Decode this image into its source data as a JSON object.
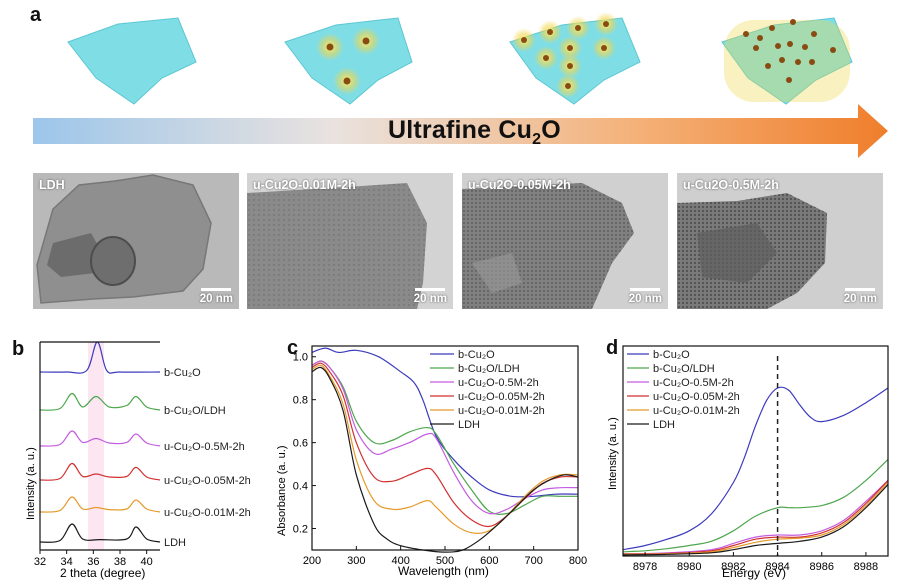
{
  "panel_labels": {
    "a": "a",
    "b": "b",
    "c": "c",
    "d": "d"
  },
  "arrow": {
    "label": "Ultrafine Cu2O",
    "base": "Ultrafine Cu",
    "sub": "2",
    "tail": "O"
  },
  "tem_images": [
    {
      "label": "LDH",
      "scale": "20 nm"
    },
    {
      "label": "u-Cu2O-0.01M-2h",
      "scale": "20 nm"
    },
    {
      "label": "u-Cu2O-0.05M-2h",
      "scale": "20 nm"
    },
    {
      "label": "u-Cu2O-0.5M-2h",
      "scale": "20 nm"
    }
  ],
  "colors": {
    "b_cu2o": "#3b3bbd",
    "b_cu2o_ldh": "#4ea64e",
    "u_05": "#c45ce0",
    "u_005": "#d23030",
    "u_001": "#e59a2a",
    "ldh": "#1a1a1a",
    "sheet": "#7fdde6"
  },
  "chart_data": [
    {
      "type": "line",
      "title": "",
      "xlabel": "2 theta (degree)",
      "ylabel": "Intensity (a. u.)",
      "xlim": [
        32,
        41
      ],
      "xticks": [
        32,
        34,
        36,
        38,
        40
      ],
      "highlight_range": [
        35.6,
        36.8
      ],
      "series": [
        {
          "name": "b-Cu2O",
          "label": "b-Cu₂O",
          "color": "#3b3bbd",
          "x": [
            32,
            34,
            35.5,
            36.3,
            37,
            38,
            41
          ],
          "y": [
            0,
            0,
            0.05,
            1.0,
            0.05,
            0,
            0
          ]
        },
        {
          "name": "b-Cu2O/LDH",
          "label": "b-Cu₂O/LDH",
          "color": "#4ea64e",
          "x": [
            32,
            33.5,
            34.4,
            35.2,
            36.2,
            37.2,
            38.5,
            39.2,
            40,
            41
          ],
          "y": [
            0,
            0.05,
            0.55,
            0.1,
            0.45,
            0.1,
            0.15,
            0.45,
            0.1,
            0
          ]
        },
        {
          "name": "u-Cu2O-0.5M-2h",
          "label": "u-Cu₂O-0.5M-2h",
          "color": "#c45ce0",
          "x": [
            32,
            33.5,
            34.4,
            35.2,
            36.2,
            37.2,
            38.5,
            39.2,
            40,
            41
          ],
          "y": [
            0,
            0.05,
            0.5,
            0.12,
            0.25,
            0.1,
            0.12,
            0.4,
            0.1,
            0
          ]
        },
        {
          "name": "u-Cu2O-0.05M-2h",
          "label": "u-Cu₂O-0.05M-2h",
          "color": "#d23030",
          "x": [
            32,
            33.5,
            34.4,
            35.2,
            36.2,
            37.2,
            38.5,
            39.2,
            40,
            41
          ],
          "y": [
            0,
            0.05,
            0.55,
            0.12,
            0.2,
            0.1,
            0.12,
            0.42,
            0.1,
            0
          ]
        },
        {
          "name": "u-Cu2O-0.01M-2h",
          "label": "u-Cu₂O-0.01M-2h",
          "color": "#e59a2a",
          "x": [
            32,
            33.5,
            34.4,
            35.2,
            36.2,
            37.2,
            38.5,
            39.2,
            40,
            41
          ],
          "y": [
            0,
            0.05,
            0.5,
            0.1,
            0.15,
            0.08,
            0.1,
            0.4,
            0.1,
            0
          ]
        },
        {
          "name": "LDH",
          "label": "LDH",
          "color": "#1a1a1a",
          "x": [
            32,
            33.5,
            34.4,
            35.2,
            36.5,
            38.5,
            39.2,
            40,
            41
          ],
          "y": [
            0,
            0.05,
            0.6,
            0.1,
            0.08,
            0.1,
            0.5,
            0.1,
            0
          ]
        }
      ]
    },
    {
      "type": "line",
      "title": "",
      "xlabel": "Wavelength (nm)",
      "ylabel": "Absorbance (a. u.)",
      "xlim": [
        200,
        800
      ],
      "ylim": [
        0.1,
        1.05
      ],
      "xticks": [
        200,
        300,
        400,
        500,
        600,
        700,
        800
      ],
      "yticks": [
        0.2,
        0.4,
        0.6,
        0.8,
        1.0
      ],
      "series": [
        {
          "name": "b-Cu2O",
          "label": "b-Cu₂O",
          "color": "#3b3bbd",
          "x": [
            200,
            230,
            260,
            300,
            350,
            400,
            430,
            450,
            480,
            520,
            560,
            600,
            650,
            700,
            750,
            800
          ],
          "y": [
            1.02,
            1.04,
            1.02,
            1.03,
            1.0,
            0.93,
            0.88,
            0.8,
            0.63,
            0.52,
            0.44,
            0.38,
            0.35,
            0.35,
            0.36,
            0.36
          ]
        },
        {
          "name": "b-Cu2O/LDH",
          "label": "b-Cu₂O/LDH",
          "color": "#4ea64e",
          "x": [
            200,
            220,
            240,
            270,
            300,
            340,
            380,
            420,
            460,
            480,
            520,
            560,
            600,
            640,
            680,
            720,
            760,
            800
          ],
          "y": [
            0.96,
            0.98,
            0.95,
            0.86,
            0.7,
            0.6,
            0.61,
            0.65,
            0.67,
            0.64,
            0.5,
            0.38,
            0.28,
            0.27,
            0.31,
            0.35,
            0.35,
            0.35
          ]
        },
        {
          "name": "u-Cu2O-0.5M-2h",
          "label": "u-Cu₂O-0.5M-2h",
          "color": "#c45ce0",
          "x": [
            200,
            220,
            240,
            270,
            300,
            340,
            380,
            420,
            460,
            480,
            520,
            560,
            600,
            640,
            680,
            720,
            760,
            800
          ],
          "y": [
            0.96,
            0.98,
            0.95,
            0.85,
            0.66,
            0.55,
            0.57,
            0.6,
            0.64,
            0.62,
            0.46,
            0.33,
            0.27,
            0.29,
            0.34,
            0.38,
            0.39,
            0.39
          ]
        },
        {
          "name": "u-Cu2O-0.05M-2h",
          "label": "u-Cu₂O-0.05M-2h",
          "color": "#d23030",
          "x": [
            200,
            220,
            240,
            270,
            300,
            340,
            380,
            420,
            460,
            480,
            520,
            560,
            600,
            640,
            680,
            720,
            760,
            800
          ],
          "y": [
            0.95,
            0.97,
            0.93,
            0.82,
            0.6,
            0.44,
            0.42,
            0.45,
            0.48,
            0.45,
            0.32,
            0.24,
            0.21,
            0.26,
            0.34,
            0.41,
            0.44,
            0.44
          ]
        },
        {
          "name": "u-Cu2O-0.01M-2h",
          "label": "u-Cu₂O-0.01M-2h",
          "color": "#e59a2a",
          "x": [
            200,
            220,
            240,
            270,
            300,
            340,
            380,
            420,
            460,
            480,
            520,
            560,
            600,
            640,
            680,
            720,
            760,
            800
          ],
          "y": [
            0.94,
            0.96,
            0.91,
            0.78,
            0.52,
            0.33,
            0.29,
            0.3,
            0.33,
            0.3,
            0.22,
            0.18,
            0.19,
            0.26,
            0.35,
            0.42,
            0.45,
            0.45
          ]
        },
        {
          "name": "LDH",
          "label": "LDH",
          "color": "#1a1a1a",
          "x": [
            200,
            220,
            240,
            270,
            300,
            340,
            370,
            400,
            450,
            500,
            540,
            580,
            620,
            660,
            700,
            740,
            770,
            800
          ],
          "y": [
            0.93,
            0.95,
            0.9,
            0.75,
            0.45,
            0.22,
            0.15,
            0.12,
            0.1,
            0.09,
            0.1,
            0.15,
            0.22,
            0.3,
            0.38,
            0.43,
            0.45,
            0.44
          ]
        }
      ]
    },
    {
      "type": "line",
      "title": "",
      "xlabel": "Energy (eV)",
      "ylabel": "Intensity (a. u.)",
      "xlim": [
        8977,
        8989
      ],
      "ylim": [
        0,
        1.0
      ],
      "xticks": [
        8978,
        8980,
        8982,
        8984,
        8986,
        8988
      ],
      "vline": 8984,
      "series": [
        {
          "name": "b-Cu2O",
          "label": "b-Cu₂O",
          "color": "#3b3bbd",
          "x": [
            8977,
            8978,
            8979,
            8980,
            8981,
            8982,
            8982.5,
            8983,
            8983.5,
            8984,
            8984.5,
            8985,
            8985.5,
            8986,
            8987,
            8988,
            8989
          ],
          "y": [
            0.03,
            0.05,
            0.08,
            0.12,
            0.2,
            0.35,
            0.47,
            0.62,
            0.74,
            0.8,
            0.79,
            0.72,
            0.66,
            0.64,
            0.67,
            0.73,
            0.8
          ]
        },
        {
          "name": "b-Cu2O/LDH",
          "label": "b-Cu₂O/LDH",
          "color": "#4ea64e",
          "x": [
            8977,
            8978,
            8979,
            8980,
            8981,
            8982,
            8983,
            8984,
            8984.5,
            8985,
            8986,
            8987,
            8988,
            8989
          ],
          "y": [
            0.02,
            0.025,
            0.035,
            0.05,
            0.07,
            0.12,
            0.19,
            0.23,
            0.23,
            0.23,
            0.24,
            0.28,
            0.36,
            0.46
          ]
        },
        {
          "name": "u-Cu2O-0.5M-2h",
          "label": "u-Cu₂O-0.5M-2h",
          "color": "#c45ce0",
          "x": [
            8977,
            8979,
            8981,
            8982,
            8983,
            8984,
            8985,
            8986,
            8987,
            8988,
            8989
          ],
          "y": [
            0.01,
            0.015,
            0.03,
            0.06,
            0.09,
            0.1,
            0.1,
            0.12,
            0.17,
            0.26,
            0.36
          ]
        },
        {
          "name": "u-Cu2O-0.05M-2h",
          "label": "u-Cu₂O-0.05M-2h",
          "color": "#d23030",
          "x": [
            8977,
            8979,
            8981,
            8982,
            8983,
            8984,
            8985,
            8986,
            8987,
            8988,
            8989
          ],
          "y": [
            0.01,
            0.012,
            0.025,
            0.05,
            0.08,
            0.09,
            0.09,
            0.11,
            0.16,
            0.25,
            0.36
          ]
        },
        {
          "name": "u-Cu2O-0.01M-2h",
          "label": "u-Cu₂O-0.01M-2h",
          "color": "#e59a2a",
          "x": [
            8977,
            8979,
            8981,
            8982,
            8983,
            8984,
            8985,
            8986,
            8987,
            8988,
            8989
          ],
          "y": [
            0.008,
            0.01,
            0.02,
            0.04,
            0.065,
            0.08,
            0.085,
            0.1,
            0.15,
            0.24,
            0.35
          ]
        },
        {
          "name": "LDH",
          "label": "LDH",
          "color": "#1a1a1a",
          "x": [
            8977,
            8979,
            8981,
            8982,
            8983,
            8984,
            8985,
            8986,
            8987,
            8988,
            8989
          ],
          "y": [
            0.005,
            0.008,
            0.015,
            0.03,
            0.05,
            0.06,
            0.07,
            0.09,
            0.14,
            0.23,
            0.34
          ]
        }
      ]
    }
  ]
}
